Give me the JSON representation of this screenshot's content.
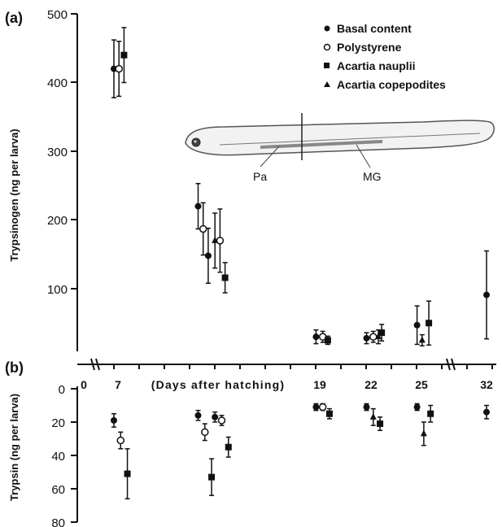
{
  "chart_data": [
    {
      "panel": "(a)",
      "type": "scatter",
      "ylabel": "Trypsinogen (ng per larva)",
      "ylim": [
        0,
        500
      ],
      "yticks": [
        "100",
        "200",
        "300",
        "400",
        "500"
      ],
      "legend": {
        "placement": "top-right",
        "entries": [
          "Basal content",
          "Polystyrene",
          "Acartia nauplii",
          "Acartia copepodites"
        ]
      },
      "inset_labels": [
        "Pa",
        "MG"
      ],
      "series": [
        {
          "name": "Basal content",
          "marker": "filled-circle",
          "points": [
            {
              "x": 7,
              "y": 420,
              "err": 42
            },
            {
              "x": 12,
              "y": 220,
              "err": 33
            },
            {
              "x": 12.6,
              "y": 148,
              "err": 40
            },
            {
              "x": 19,
              "y": 30,
              "err": 10
            },
            {
              "x": 22,
              "y": 28,
              "err": 8
            },
            {
              "x": 25,
              "y": 47,
              "err": 28
            },
            {
              "x": 32,
              "y": 91,
              "err": 64
            }
          ]
        },
        {
          "name": "Polystyrene",
          "marker": "open-circle",
          "points": [
            {
              "x": 7.3,
              "y": 420,
              "err": 40
            },
            {
              "x": 12.3,
              "y": 187,
              "err": 38
            },
            {
              "x": 13.3,
              "y": 170,
              "err": 46
            },
            {
              "x": 19.4,
              "y": 30,
              "err": 8
            },
            {
              "x": 22.4,
              "y": 30,
              "err": 8
            }
          ]
        },
        {
          "name": "Acartia nauplii",
          "marker": "filled-square",
          "points": [
            {
              "x": 7.6,
              "y": 440,
              "err": 40
            },
            {
              "x": 13.6,
              "y": 116,
              "err": 22
            },
            {
              "x": 19.7,
              "y": 25,
              "err": 6
            },
            {
              "x": 22.9,
              "y": 36,
              "err": 12
            },
            {
              "x": 25.7,
              "y": 50,
              "err": 32
            }
          ]
        },
        {
          "name": "Acartia copepodites",
          "marker": "filled-triangle",
          "points": [
            {
              "x": 13.0,
              "y": 170,
              "err": 40
            },
            {
              "x": 22.7,
              "y": 30,
              "err": 10
            },
            {
              "x": 25.3,
              "y": 25,
              "err": 8
            }
          ]
        }
      ]
    },
    {
      "panel": "(b)",
      "type": "scatter",
      "xlabel": "(Days after hatching)",
      "xticks": [
        "0",
        "7",
        "19",
        "22",
        "25",
        "32"
      ],
      "ylabel": "Trypsin (ng per larva)",
      "ylim": [
        0,
        80
      ],
      "yaxis_inverted": true,
      "yticks": [
        "0",
        "20",
        "40",
        "60",
        "80"
      ],
      "series": [
        {
          "name": "Basal content",
          "marker": "filled-circle",
          "points": [
            {
              "x": 7,
              "y": 19,
              "err": 4
            },
            {
              "x": 12,
              "y": 16,
              "err": 3
            },
            {
              "x": 13,
              "y": 17,
              "err": 3
            },
            {
              "x": 19,
              "y": 11,
              "err": 2
            },
            {
              "x": 22,
              "y": 11,
              "err": 2
            },
            {
              "x": 25,
              "y": 11,
              "err": 2
            },
            {
              "x": 32,
              "y": 14,
              "err": 4
            }
          ]
        },
        {
          "name": "Polystyrene",
          "marker": "open-circle",
          "points": [
            {
              "x": 7.4,
              "y": 31,
              "err": 5
            },
            {
              "x": 12.4,
              "y": 26,
              "err": 5
            },
            {
              "x": 13.4,
              "y": 19,
              "err": 3
            },
            {
              "x": 19.4,
              "y": 11,
              "err": 2
            }
          ]
        },
        {
          "name": "Acartia nauplii",
          "marker": "filled-square",
          "points": [
            {
              "x": 7.8,
              "y": 51,
              "err": 15
            },
            {
              "x": 12.8,
              "y": 53,
              "err": 11
            },
            {
              "x": 13.8,
              "y": 35,
              "err": 6
            },
            {
              "x": 19.8,
              "y": 15,
              "err": 3
            },
            {
              "x": 22.8,
              "y": 21,
              "err": 4
            },
            {
              "x": 25.8,
              "y": 15,
              "err": 5
            }
          ]
        },
        {
          "name": "Acartia copepodites",
          "marker": "filled-triangle",
          "points": [
            {
              "x": 22.4,
              "y": 17,
              "err": 5
            },
            {
              "x": 25.4,
              "y": 27,
              "err": 7
            }
          ]
        }
      ]
    }
  ]
}
